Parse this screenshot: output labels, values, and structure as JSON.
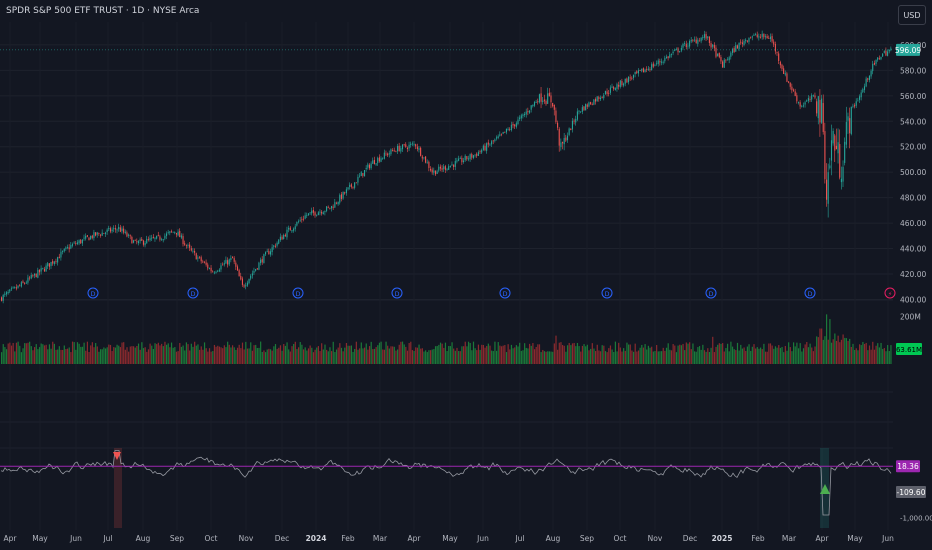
{
  "header": {
    "title": "SPDR S&P 500 ETF TRUST · 1D · NYSE Arca",
    "currency": "USD"
  },
  "colors": {
    "up": "#26a69a",
    "down": "#ef5350",
    "volUp": "#1b7a3a",
    "volDown": "#8a2a2e",
    "osc": "#9598a1",
    "signal": "#9c27b0",
    "dividend": "#2962ff",
    "split": "#e91e63",
    "grid": "#1e222d",
    "text": "#b2b5be",
    "bg": "#131722"
  },
  "chart_data": [
    {
      "type": "candlestick",
      "pane": "price",
      "yticks": [
        "400.00",
        "420.00",
        "440.00",
        "460.00",
        "480.00",
        "500.00",
        "520.00",
        "540.00",
        "560.00",
        "580.00",
        "600.00"
      ],
      "ylim": [
        398,
        618
      ],
      "last_price": "596.09",
      "anchors": [
        [
          0,
          401
        ],
        [
          22,
          412
        ],
        [
          45,
          425
        ],
        [
          70,
          442
        ],
        [
          92,
          450
        ],
        [
          118,
          456
        ],
        [
          135,
          444
        ],
        [
          158,
          448
        ],
        [
          175,
          454
        ],
        [
          190,
          438
        ],
        [
          212,
          422
        ],
        [
          232,
          432
        ],
        [
          242,
          410
        ],
        [
          262,
          432
        ],
        [
          285,
          452
        ],
        [
          305,
          466
        ],
        [
          330,
          472
        ],
        [
          352,
          490
        ],
        [
          372,
          508
        ],
        [
          395,
          518
        ],
        [
          415,
          522
        ],
        [
          432,
          500
        ],
        [
          452,
          506
        ],
        [
          475,
          514
        ],
        [
          500,
          528
        ],
        [
          520,
          542
        ],
        [
          540,
          560
        ],
        [
          552,
          556
        ],
        [
          560,
          518
        ],
        [
          578,
          548
        ],
        [
          600,
          560
        ],
        [
          625,
          572
        ],
        [
          648,
          582
        ],
        [
          662,
          588
        ],
        [
          685,
          600
        ],
        [
          705,
          607
        ],
        [
          712,
          598
        ],
        [
          722,
          584
        ],
        [
          735,
          598
        ],
        [
          750,
          607
        ],
        [
          770,
          606
        ],
        [
          785,
          575
        ],
        [
          800,
          552
        ],
        [
          815,
          560
        ],
        [
          822,
          542
        ],
        [
          826,
          484
        ],
        [
          832,
          530
        ],
        [
          840,
          504
        ],
        [
          850,
          548
        ],
        [
          862,
          564
        ],
        [
          870,
          580
        ],
        [
          880,
          592
        ],
        [
          890,
          596
        ]
      ],
      "markers": [
        {
          "x": 93,
          "label": "D",
          "kind": "dividend"
        },
        {
          "x": 193,
          "label": "D",
          "kind": "dividend"
        },
        {
          "x": 298,
          "label": "D",
          "kind": "dividend"
        },
        {
          "x": 397,
          "label": "D",
          "kind": "dividend"
        },
        {
          "x": 505,
          "label": "D",
          "kind": "dividend"
        },
        {
          "x": 607,
          "label": "D",
          "kind": "dividend"
        },
        {
          "x": 711,
          "label": "D",
          "kind": "dividend"
        },
        {
          "x": 810,
          "label": "D",
          "kind": "dividend"
        },
        {
          "x": 890,
          "label": "⚡",
          "kind": "split"
        }
      ]
    },
    {
      "type": "bar",
      "pane": "volume",
      "yticks": [
        "200M"
      ],
      "ylim": [
        0,
        220
      ],
      "last_value": "63.61M",
      "typical_range": [
        50,
        95
      ],
      "spikes": [
        [
          555,
          120
        ],
        [
          712,
          115
        ],
        [
          820,
          150
        ],
        [
          826,
          210
        ],
        [
          829,
          190
        ]
      ]
    },
    {
      "type": "line",
      "pane": "oscillator",
      "yticks": [
        "-1,000.00"
      ],
      "ylim": [
        -1050,
        380
      ],
      "signal_value": "18.36",
      "last_value": "-109.60",
      "markers": [
        {
          "x": 117,
          "dir": "down"
        },
        {
          "x": 825,
          "dir": "up"
        }
      ]
    }
  ],
  "xaxis": {
    "labels": [
      {
        "x": 10,
        "t": "Apr"
      },
      {
        "x": 40,
        "t": "May"
      },
      {
        "x": 76,
        "t": "Jun"
      },
      {
        "x": 108,
        "t": "Jul"
      },
      {
        "x": 143,
        "t": "Aug"
      },
      {
        "x": 177,
        "t": "Sep"
      },
      {
        "x": 211,
        "t": "Oct"
      },
      {
        "x": 246,
        "t": "Nov"
      },
      {
        "x": 282,
        "t": "Dec"
      },
      {
        "x": 316,
        "t": "2024"
      },
      {
        "x": 348,
        "t": "Feb"
      },
      {
        "x": 380,
        "t": "Mar"
      },
      {
        "x": 414,
        "t": "Apr"
      },
      {
        "x": 450,
        "t": "May"
      },
      {
        "x": 483,
        "t": "Jun"
      },
      {
        "x": 520,
        "t": "Jul"
      },
      {
        "x": 553,
        "t": "Aug"
      },
      {
        "x": 587,
        "t": "Sep"
      },
      {
        "x": 620,
        "t": "Oct"
      },
      {
        "x": 655,
        "t": "Nov"
      },
      {
        "x": 690,
        "t": "Dec"
      },
      {
        "x": 722,
        "t": "2025"
      },
      {
        "x": 758,
        "t": "Feb"
      },
      {
        "x": 789,
        "t": "Mar"
      },
      {
        "x": 822,
        "t": "Apr"
      },
      {
        "x": 855,
        "t": "May"
      },
      {
        "x": 888,
        "t": "Jun"
      }
    ]
  }
}
